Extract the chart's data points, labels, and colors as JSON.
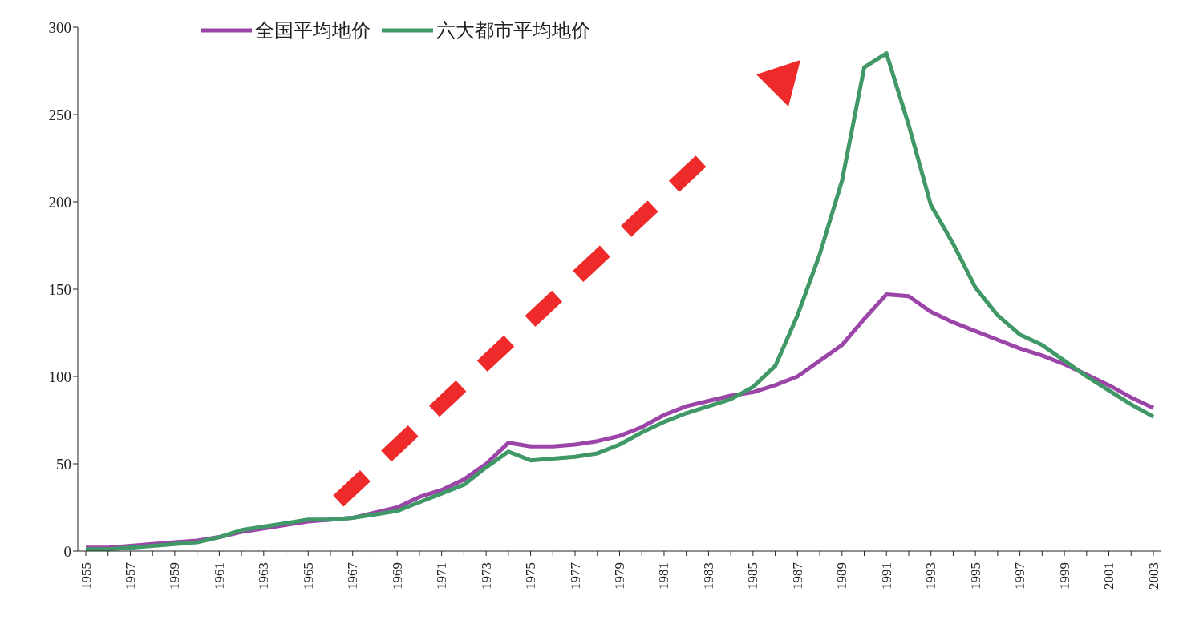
{
  "chart_data": {
    "type": "line",
    "categories": [
      "1955",
      null,
      "1957",
      null,
      "1959",
      null,
      "1961",
      null,
      "1963",
      null,
      "1965",
      null,
      "1967",
      null,
      "1969",
      null,
      "1971",
      null,
      "1973",
      null,
      "1975",
      null,
      "1977",
      null,
      "1979",
      null,
      "1981",
      null,
      "1983",
      null,
      "1985",
      null,
      "1987",
      null,
      "1989",
      null,
      "1991",
      null,
      "1993",
      null,
      "1995",
      null,
      "1997",
      null,
      "1999",
      null,
      "2001",
      null,
      "2003"
    ],
    "series": [
      {
        "name": "全国平均地价",
        "color": "#9b45a8",
        "values": [
          2,
          2,
          3,
          4,
          5,
          6,
          8,
          11,
          13,
          15,
          17,
          18,
          19,
          22,
          25,
          31,
          35,
          41,
          50,
          62,
          60,
          60,
          61,
          63,
          66,
          71,
          78,
          83,
          86,
          89,
          91,
          95,
          100,
          109,
          118,
          133,
          147,
          146,
          137,
          131,
          126,
          121,
          116,
          112,
          107,
          101,
          95,
          88,
          82
        ]
      },
      {
        "name": "六大都市平均地价",
        "color": "#3f9866",
        "values": [
          1,
          1,
          2,
          3,
          4,
          5,
          8,
          12,
          14,
          16,
          18,
          18,
          19,
          21,
          23,
          28,
          33,
          38,
          48,
          57,
          52,
          53,
          54,
          56,
          61,
          68,
          74,
          79,
          83,
          87,
          94,
          106,
          135,
          170,
          212,
          277,
          285,
          244,
          198,
          176,
          151,
          135,
          124,
          118,
          109,
          100,
          92,
          84,
          77
        ]
      }
    ],
    "ylim": [
      0,
      300
    ],
    "yticks": [
      0,
      50,
      100,
      150,
      200,
      250,
      300
    ],
    "grid": false,
    "legend": "top left",
    "marker": "none",
    "line_style": "solid"
  }
}
